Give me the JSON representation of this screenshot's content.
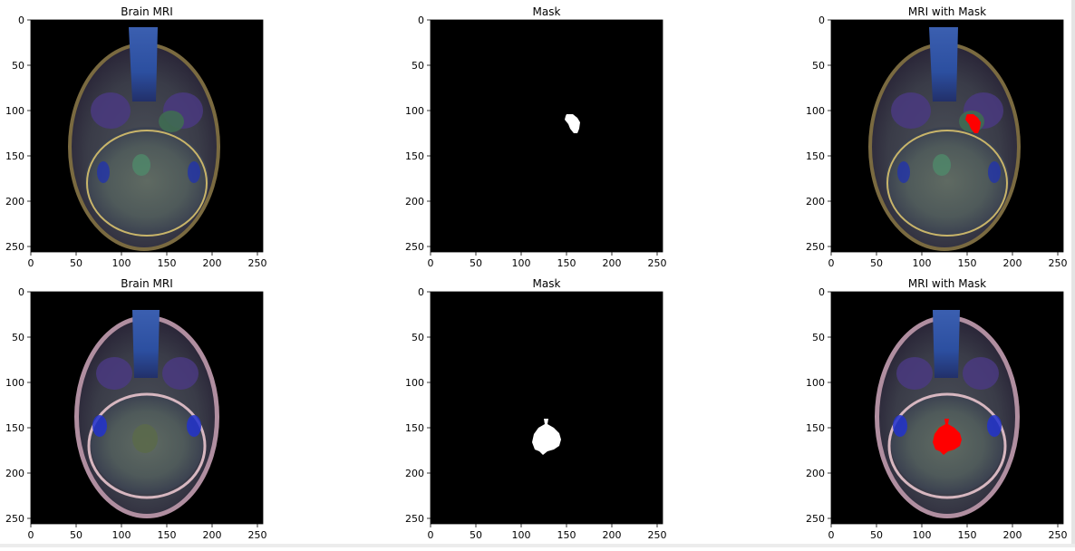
{
  "chart_data": [
    {
      "type": "image",
      "title": "Brain MRI",
      "xlim": [
        0,
        256
      ],
      "ylim": [
        256,
        0
      ],
      "xticks": [
        0,
        50,
        100,
        150,
        200,
        250
      ],
      "yticks": [
        0,
        50,
        100,
        150,
        200,
        250
      ],
      "image": "mri",
      "scan": "upper"
    },
    {
      "type": "image",
      "title": "Mask",
      "xlim": [
        0,
        256
      ],
      "ylim": [
        256,
        0
      ],
      "xticks": [
        0,
        50,
        100,
        150,
        200,
        250
      ],
      "yticks": [
        0,
        50,
        100,
        150,
        200,
        250
      ],
      "image": "mask",
      "mask_color": "#ffffff",
      "region": [
        [
          150,
          104
        ],
        [
          157,
          104
        ],
        [
          162,
          108
        ],
        [
          165,
          113
        ],
        [
          164,
          120
        ],
        [
          162,
          125
        ],
        [
          158,
          125
        ],
        [
          154,
          120
        ],
        [
          152,
          115
        ],
        [
          148,
          110
        ],
        [
          149,
          106
        ]
      ]
    },
    {
      "type": "image",
      "title": "MRI with Mask",
      "xlim": [
        0,
        256
      ],
      "ylim": [
        256,
        0
      ],
      "xticks": [
        0,
        50,
        100,
        150,
        200,
        250
      ],
      "yticks": [
        0,
        50,
        100,
        150,
        200,
        250
      ],
      "image": "overlay",
      "scan": "upper",
      "mask_color": "#ff0000",
      "region": [
        [
          150,
          104
        ],
        [
          157,
          104
        ],
        [
          162,
          108
        ],
        [
          165,
          113
        ],
        [
          164,
          120
        ],
        [
          162,
          125
        ],
        [
          158,
          125
        ],
        [
          154,
          120
        ],
        [
          152,
          115
        ],
        [
          148,
          110
        ],
        [
          149,
          106
        ]
      ]
    },
    {
      "type": "image",
      "title": "Brain MRI",
      "xlim": [
        0,
        256
      ],
      "ylim": [
        256,
        0
      ],
      "xticks": [
        0,
        50,
        100,
        150,
        200,
        250
      ],
      "yticks": [
        0,
        50,
        100,
        150,
        200,
        250
      ],
      "image": "mri",
      "scan": "lower"
    },
    {
      "type": "image",
      "title": "Mask",
      "xlim": [
        0,
        256
      ],
      "ylim": [
        256,
        0
      ],
      "xticks": [
        0,
        50,
        100,
        150,
        200,
        250
      ],
      "yticks": [
        0,
        50,
        100,
        150,
        200,
        250
      ],
      "image": "mask",
      "mask_color": "#ffffff",
      "region": [
        [
          125,
          140
        ],
        [
          130,
          140
        ],
        [
          129,
          146
        ],
        [
          136,
          150
        ],
        [
          142,
          156
        ],
        [
          144,
          163
        ],
        [
          142,
          170
        ],
        [
          136,
          174
        ],
        [
          129,
          176
        ],
        [
          124,
          180
        ],
        [
          120,
          176
        ],
        [
          115,
          174
        ],
        [
          112,
          166
        ],
        [
          114,
          157
        ],
        [
          119,
          150
        ],
        [
          126,
          146
        ]
      ]
    },
    {
      "type": "image",
      "title": "MRI with Mask",
      "xlim": [
        0,
        256
      ],
      "ylim": [
        256,
        0
      ],
      "xticks": [
        0,
        50,
        100,
        150,
        200,
        250
      ],
      "yticks": [
        0,
        50,
        100,
        150,
        200,
        250
      ],
      "image": "overlay",
      "scan": "lower",
      "mask_color": "#ff0000",
      "region": [
        [
          125,
          140
        ],
        [
          130,
          140
        ],
        [
          129,
          146
        ],
        [
          136,
          150
        ],
        [
          142,
          156
        ],
        [
          144,
          163
        ],
        [
          142,
          170
        ],
        [
          136,
          174
        ],
        [
          129,
          176
        ],
        [
          124,
          180
        ],
        [
          120,
          176
        ],
        [
          115,
          174
        ],
        [
          112,
          166
        ],
        [
          114,
          157
        ],
        [
          119,
          150
        ],
        [
          126,
          146
        ]
      ]
    }
  ],
  "colors": {
    "background": "#ffffff",
    "axis": "#000000",
    "image_background": "#000000",
    "mask": "#ffffff",
    "overlay": "#ff0000"
  }
}
